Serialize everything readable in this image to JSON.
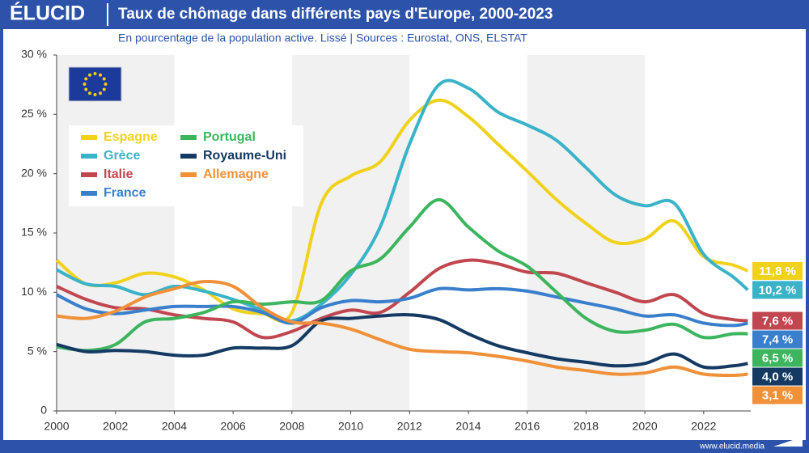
{
  "header": {
    "logo": "ÉLUCID",
    "footer": "www.elucid.media"
  },
  "chart_data": {
    "type": "line",
    "title": "Taux de chômage dans différents pays d'Europe, 2000-2023",
    "subtitle": "En pourcentage de la population active. Lissé  |  Sources : Eurostat, ONS, ELSTAT",
    "x": [
      2000,
      2001,
      2002,
      2003,
      2004,
      2005,
      2006,
      2007,
      2008,
      2009,
      2010,
      2011,
      2012,
      2013,
      2014,
      2015,
      2016,
      2017,
      2018,
      2019,
      2020,
      2021,
      2022,
      2023,
      2023.5
    ],
    "xlim": [
      2000,
      2023.6
    ],
    "xticks": [
      2000,
      2002,
      2004,
      2006,
      2008,
      2010,
      2012,
      2014,
      2016,
      2018,
      2020,
      2022
    ],
    "ylim": [
      0,
      30
    ],
    "yticks": [
      {
        "value": 0,
        "label": "0"
      },
      {
        "value": 5,
        "label": "5 %"
      },
      {
        "value": 10,
        "label": "10 %"
      },
      {
        "value": 15,
        "label": "15 %"
      },
      {
        "value": 20,
        "label": "20 %"
      },
      {
        "value": 25,
        "label": "25 %"
      },
      {
        "value": 30,
        "label": "30 %"
      }
    ],
    "grid": false,
    "series": [
      {
        "name": "Espagne",
        "color": "#f0d21c",
        "end_label": "11,8 %",
        "values": [
          12.7,
          10.7,
          10.8,
          11.6,
          11.3,
          10.2,
          8.6,
          8.2,
          8.3,
          17.5,
          19.8,
          21.0,
          24.5,
          26.2,
          24.8,
          22.5,
          20.2,
          17.8,
          15.8,
          14.2,
          14.5,
          16.0,
          13.0,
          12.3,
          11.8
        ]
      },
      {
        "name": "Grèce",
        "color": "#3ab3c9",
        "end_label": "10,2 %",
        "values": [
          11.9,
          10.7,
          10.5,
          9.8,
          10.5,
          10.1,
          9.4,
          8.5,
          7.6,
          9.0,
          11.5,
          15.5,
          22.5,
          27.5,
          27.2,
          25.2,
          24.1,
          22.8,
          20.5,
          18.2,
          17.3,
          17.5,
          13.2,
          11.3,
          10.2
        ]
      },
      {
        "name": "Italie",
        "color": "#c0474f",
        "end_label": "7,6 %",
        "values": [
          10.5,
          9.4,
          8.7,
          8.6,
          8.1,
          7.8,
          7.5,
          6.2,
          6.7,
          7.8,
          8.5,
          8.3,
          10.0,
          12.0,
          12.7,
          12.4,
          11.7,
          11.6,
          10.8,
          10.0,
          9.2,
          9.8,
          8.2,
          7.7,
          7.6
        ]
      },
      {
        "name": "France",
        "color": "#3a7fcc",
        "end_label": "7,4 %",
        "values": [
          9.8,
          8.6,
          8.2,
          8.5,
          8.8,
          8.8,
          8.8,
          8.3,
          7.4,
          8.7,
          9.3,
          9.2,
          9.5,
          10.3,
          10.2,
          10.3,
          10.1,
          9.6,
          9.1,
          8.6,
          8.0,
          8.1,
          7.4,
          7.2,
          7.4
        ]
      },
      {
        "name": "Portugal",
        "color": "#3cb55e",
        "end_label": "6,5 %",
        "values": [
          5.4,
          5.1,
          5.6,
          7.5,
          7.8,
          8.3,
          9.2,
          9.0,
          9.2,
          9.3,
          11.8,
          12.8,
          15.5,
          17.8,
          15.5,
          13.5,
          12.2,
          10.0,
          7.8,
          6.7,
          6.8,
          7.3,
          6.2,
          6.5,
          6.5
        ]
      },
      {
        "name": "Royaume-Uni",
        "color": "#143a63",
        "end_label": "4,0 %",
        "values": [
          5.6,
          5.0,
          5.1,
          5.0,
          4.7,
          4.7,
          5.3,
          5.3,
          5.5,
          7.6,
          7.8,
          8.0,
          8.1,
          7.7,
          6.5,
          5.5,
          4.9,
          4.4,
          4.1,
          3.8,
          4.0,
          4.8,
          3.7,
          3.8,
          4.0
        ]
      },
      {
        "name": "Allemagne",
        "color": "#f0913a",
        "end_label": "3,1 %",
        "values": [
          8.0,
          7.8,
          8.4,
          9.6,
          10.3,
          10.9,
          10.5,
          8.7,
          7.5,
          7.4,
          6.9,
          6.0,
          5.2,
          5.0,
          4.9,
          4.6,
          4.2,
          3.7,
          3.4,
          3.1,
          3.2,
          3.7,
          3.1,
          3.0,
          3.1
        ]
      }
    ]
  }
}
